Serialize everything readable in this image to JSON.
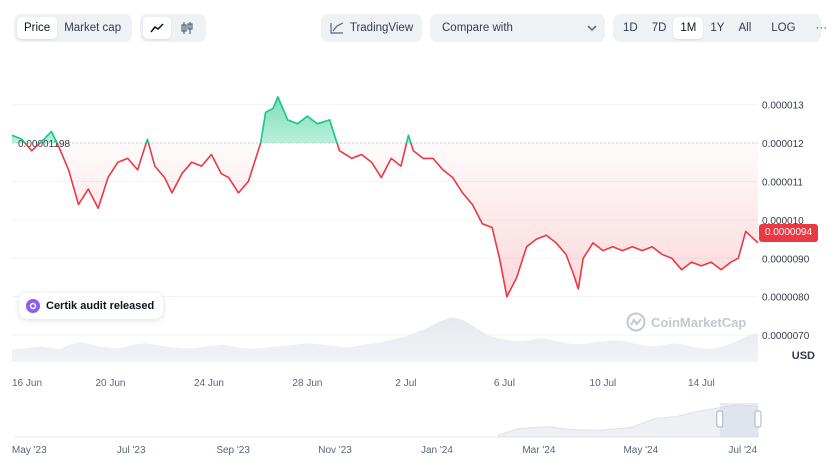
{
  "toolbar": {
    "view_tabs": [
      {
        "label": "Price",
        "active": true
      },
      {
        "label": "Market cap",
        "active": false
      }
    ],
    "chart_style_icons": [
      {
        "icon": "line-chart-icon",
        "active": true
      },
      {
        "icon": "candlestick-icon",
        "active": false
      }
    ],
    "tradingview_label": "TradingView",
    "compare_label": "Compare with",
    "ranges": [
      {
        "label": "1D",
        "active": false
      },
      {
        "label": "7D",
        "active": false
      },
      {
        "label": "1M",
        "active": true
      },
      {
        "label": "1Y",
        "active": false
      },
      {
        "label": "All",
        "active": false
      }
    ],
    "log_label": "LOG",
    "more_label": "···"
  },
  "annotation": {
    "label": "Certik audit released"
  },
  "watermark": "CoinMarketCap",
  "current_price": "0.0000094",
  "currency": "USD",
  "colors": {
    "up": "#16c784",
    "down": "#ea3943",
    "accent": "#8b5cf6"
  },
  "chart_data": {
    "type": "line",
    "baseline": {
      "value": 1.2e-05,
      "label": "0.00001198"
    },
    "y_ticks": [
      {
        "value": 1.3e-05,
        "label": "0.000013"
      },
      {
        "value": 1.2e-05,
        "label": "0.000012"
      },
      {
        "value": 1.1e-05,
        "label": "0.000011"
      },
      {
        "value": 1e-05,
        "label": "0.000010"
      },
      {
        "value": 9e-06,
        "label": "0.0000090"
      },
      {
        "value": 8e-06,
        "label": "0.0000080"
      },
      {
        "value": 7e-06,
        "label": "0.0000070"
      }
    ],
    "ylim": [
      6.3e-06,
      1.39e-05
    ],
    "x_ticks": [
      {
        "day": 0,
        "label": "16 Jun"
      },
      {
        "day": 4,
        "label": "20 Jun"
      },
      {
        "day": 8,
        "label": "24 Jun"
      },
      {
        "day": 12,
        "label": "28 Jun"
      },
      {
        "day": 16,
        "label": "2 Jul"
      },
      {
        "day": 20,
        "label": "6 Jul"
      },
      {
        "day": 24,
        "label": "10 Jul"
      },
      {
        "day": 28,
        "label": "14 Jul"
      }
    ],
    "xlim": [
      0,
      30.3
    ],
    "series": [
      {
        "points": [
          [
            0,
            1.22e-05
          ],
          [
            0.4,
            1.21e-05
          ],
          [
            0.8,
            1.18e-05
          ],
          [
            1.3,
            1.21e-05
          ],
          [
            1.6,
            1.23e-05
          ],
          [
            1.9,
            1.19e-05
          ],
          [
            2.3,
            1.13e-05
          ],
          [
            2.7,
            1.04e-05
          ],
          [
            3.1,
            1.08e-05
          ],
          [
            3.5,
            1.03e-05
          ],
          [
            3.9,
            1.11e-05
          ],
          [
            4.3,
            1.15e-05
          ],
          [
            4.7,
            1.16e-05
          ],
          [
            5.1,
            1.13e-05
          ],
          [
            5.5,
            1.21e-05
          ],
          [
            5.8,
            1.14e-05
          ],
          [
            6.2,
            1.11e-05
          ],
          [
            6.5,
            1.07e-05
          ],
          [
            6.9,
            1.12e-05
          ],
          [
            7.3,
            1.15e-05
          ],
          [
            7.7,
            1.14e-05
          ],
          [
            8.1,
            1.17e-05
          ],
          [
            8.5,
            1.12e-05
          ],
          [
            8.8,
            1.11e-05
          ],
          [
            9.2,
            1.07e-05
          ],
          [
            9.6,
            1.1e-05
          ],
          [
            10.1,
            1.2e-05
          ],
          [
            10.3,
            1.28e-05
          ],
          [
            10.6,
            1.29e-05
          ],
          [
            10.8,
            1.32e-05
          ],
          [
            11.2,
            1.26e-05
          ],
          [
            11.6,
            1.25e-05
          ],
          [
            12,
            1.27e-05
          ],
          [
            12.4,
            1.25e-05
          ],
          [
            12.9,
            1.26e-05
          ],
          [
            13.3,
            1.18e-05
          ],
          [
            13.8,
            1.16e-05
          ],
          [
            14.2,
            1.17e-05
          ],
          [
            14.6,
            1.15e-05
          ],
          [
            15,
            1.11e-05
          ],
          [
            15.4,
            1.16e-05
          ],
          [
            15.8,
            1.14e-05
          ],
          [
            16.1,
            1.22e-05
          ],
          [
            16.3,
            1.18e-05
          ],
          [
            16.7,
            1.16e-05
          ],
          [
            17.1,
            1.16e-05
          ],
          [
            17.5,
            1.13e-05
          ],
          [
            17.9,
            1.11e-05
          ],
          [
            18.3,
            1.07e-05
          ],
          [
            18.7,
            1.04e-05
          ],
          [
            19.1,
            9.9e-06
          ],
          [
            19.5,
            9.8e-06
          ],
          [
            19.8,
            9e-06
          ],
          [
            20.1,
            8e-06
          ],
          [
            20.5,
            8.5e-06
          ],
          [
            20.9,
            9.3e-06
          ],
          [
            21.3,
            9.5e-06
          ],
          [
            21.7,
            9.6e-06
          ],
          [
            22.1,
            9.4e-06
          ],
          [
            22.5,
            9.1e-06
          ],
          [
            22.8,
            8.6e-06
          ],
          [
            23,
            8.2e-06
          ],
          [
            23.2,
            9e-06
          ],
          [
            23.6,
            9.4e-06
          ],
          [
            24,
            9.2e-06
          ],
          [
            24.4,
            9.3e-06
          ],
          [
            24.8,
            9.2e-06
          ],
          [
            25.2,
            9.3e-06
          ],
          [
            25.6,
            9.2e-06
          ],
          [
            26,
            9.3e-06
          ],
          [
            26.4,
            9.1e-06
          ],
          [
            26.8,
            9e-06
          ],
          [
            27.2,
            8.7e-06
          ],
          [
            27.6,
            8.9e-06
          ],
          [
            28,
            8.8e-06
          ],
          [
            28.4,
            8.9e-06
          ],
          [
            28.8,
            8.7e-06
          ],
          [
            29.2,
            8.9e-06
          ],
          [
            29.5,
            9e-06
          ],
          [
            29.8,
            9.7e-06
          ],
          [
            30.3,
            9.4e-06
          ]
        ]
      }
    ],
    "volume": [
      0.24,
      0.26,
      0.28,
      0.3,
      0.27,
      0.25,
      0.33,
      0.38,
      0.35,
      0.3,
      0.28,
      0.26,
      0.3,
      0.34,
      0.36,
      0.33,
      0.3,
      0.28,
      0.26,
      0.27,
      0.29,
      0.31,
      0.33,
      0.3,
      0.27,
      0.26,
      0.27,
      0.29,
      0.3,
      0.32,
      0.34,
      0.36,
      0.34,
      0.32,
      0.3,
      0.28,
      0.3,
      0.34,
      0.36,
      0.4,
      0.44,
      0.48,
      0.55,
      0.62,
      0.72,
      0.8,
      0.86,
      0.82,
      0.72,
      0.6,
      0.5,
      0.45,
      0.42,
      0.4,
      0.42,
      0.45,
      0.44,
      0.4,
      0.36,
      0.34,
      0.35,
      0.38,
      0.4,
      0.42,
      0.4,
      0.36,
      0.32,
      0.3,
      0.32,
      0.36,
      0.34,
      0.3,
      0.26,
      0.25,
      0.28,
      0.34,
      0.42,
      0.5,
      0.56
    ],
    "navigator": {
      "x_ticks": [
        {
          "month": 0,
          "label": "May '23"
        },
        {
          "month": 2,
          "label": "Jul '23"
        },
        {
          "month": 4,
          "label": "Sep '23"
        },
        {
          "month": 6,
          "label": "Nov '23"
        },
        {
          "month": 8,
          "label": "Jan '24"
        },
        {
          "month": 10,
          "label": "Mar '24"
        },
        {
          "month": 12,
          "label": "May '24"
        },
        {
          "month": 14,
          "label": "Jul '24"
        }
      ],
      "xlim": [
        -0.3,
        14.3
      ],
      "window": [
        13.55,
        14.3
      ],
      "profile": [
        [
          9.2,
          0.05
        ],
        [
          9.6,
          0.25
        ],
        [
          10.2,
          0.3
        ],
        [
          10.6,
          0.22
        ],
        [
          11.2,
          0.2
        ],
        [
          11.8,
          0.28
        ],
        [
          12.3,
          0.55
        ],
        [
          12.7,
          0.6
        ],
        [
          13.1,
          0.75
        ],
        [
          13.5,
          0.85
        ],
        [
          13.9,
          0.95
        ],
        [
          14.3,
          0.9
        ]
      ]
    }
  }
}
